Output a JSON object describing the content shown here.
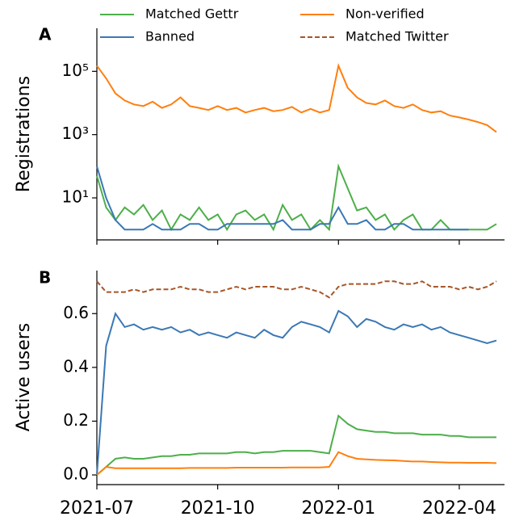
{
  "chart_data": [
    {
      "type": "line",
      "panel": "A",
      "ylabel": "Registrations",
      "log_y": true,
      "ylim": [
        0.47,
        2300000
      ],
      "yticks": [
        {
          "value": 10,
          "label": "10¹"
        },
        {
          "value": 1000,
          "label": "10³"
        },
        {
          "value": 100000,
          "label": "10⁵"
        }
      ],
      "series": [
        {
          "color": "#4daf4a",
          "values": [
            50,
            5,
            2,
            5,
            3,
            6,
            2,
            4,
            1,
            3,
            2,
            5,
            2,
            3,
            1,
            3,
            4,
            2,
            3,
            1,
            6,
            2,
            3,
            1,
            2,
            1,
            100,
            20,
            4,
            5,
            2,
            3,
            1,
            2,
            3,
            1,
            1,
            2,
            1,
            1,
            1,
            1,
            1,
            1.5
          ]
        },
        {
          "color": "#3a78b5",
          "values": [
            100,
            10,
            2,
            1,
            1,
            1,
            1.5,
            1,
            1,
            1,
            1.5,
            1.5,
            1,
            1,
            1.5,
            1.5,
            1.5,
            1.5,
            1.5,
            1.5,
            2,
            1,
            1,
            1,
            1.5,
            1.5,
            5,
            1.5,
            1.5,
            2,
            1,
            1,
            1.5,
            1.5,
            1,
            1,
            1,
            1,
            1,
            1,
            1,
            null,
            null,
            null
          ]
        },
        {
          "color": "#ff7f0e",
          "values": [
            150000,
            60000,
            20000,
            12000,
            9000,
            8000,
            11000,
            7000,
            9000,
            15000,
            8000,
            7000,
            6000,
            8000,
            6000,
            7000,
            5000,
            6000,
            7000,
            5500,
            6000,
            7500,
            5000,
            6500,
            5000,
            6000,
            150000,
            30000,
            15000,
            10000,
            9000,
            12000,
            8000,
            7000,
            9000,
            6000,
            5000,
            5500,
            4000,
            3500,
            3000,
            2500,
            2000,
            1200
          ]
        }
      ]
    },
    {
      "type": "line",
      "panel": "B",
      "ylabel": "Active users",
      "categories": [
        "2021-07",
        null,
        null,
        null,
        null,
        null,
        null,
        null,
        null,
        null,
        null,
        null,
        null,
        "2021-10",
        null,
        null,
        null,
        null,
        null,
        null,
        null,
        null,
        null,
        null,
        null,
        null,
        "2022-01",
        null,
        null,
        null,
        null,
        null,
        null,
        null,
        null,
        null,
        null,
        null,
        null,
        "2022-04",
        null,
        null,
        null,
        null
      ],
      "ylim": [
        -0.036,
        0.76
      ],
      "yticks": [
        {
          "value": 0,
          "label": "0.0"
        },
        0.2,
        0.4,
        0.6
      ],
      "series": [
        {
          "name": "Matched Gettr",
          "color": "#4daf4a",
          "dashed": false,
          "values": [
            0.0,
            0.03,
            0.06,
            0.065,
            0.06,
            0.06,
            0.065,
            0.07,
            0.07,
            0.075,
            0.075,
            0.08,
            0.08,
            0.08,
            0.08,
            0.085,
            0.085,
            0.08,
            0.085,
            0.085,
            0.09,
            0.09,
            0.09,
            0.09,
            0.085,
            0.08,
            0.22,
            0.19,
            0.17,
            0.165,
            0.16,
            0.16,
            0.155,
            0.155,
            0.155,
            0.15,
            0.15,
            0.15,
            0.145,
            0.145,
            0.14,
            0.14,
            0.14,
            0.14
          ]
        },
        {
          "name": "Banned",
          "color": "#3a78b5",
          "dashed": false,
          "values": [
            0.0,
            0.48,
            0.6,
            0.55,
            0.56,
            0.54,
            0.55,
            0.54,
            0.55,
            0.53,
            0.54,
            0.52,
            0.53,
            0.52,
            0.51,
            0.53,
            0.52,
            0.51,
            0.54,
            0.52,
            0.51,
            0.55,
            0.57,
            0.56,
            0.55,
            0.53,
            0.61,
            0.59,
            0.55,
            0.58,
            0.57,
            0.55,
            0.54,
            0.56,
            0.55,
            0.56,
            0.54,
            0.55,
            0.53,
            0.52,
            0.51,
            0.5,
            0.49,
            0.5
          ]
        },
        {
          "name": "Non-verified",
          "color": "#ff7f0e",
          "dashed": false,
          "values": [
            0.0,
            0.03,
            0.025,
            0.025,
            0.025,
            0.025,
            0.025,
            0.025,
            0.025,
            0.025,
            0.026,
            0.026,
            0.026,
            0.026,
            0.026,
            0.027,
            0.027,
            0.027,
            0.027,
            0.027,
            0.027,
            0.028,
            0.028,
            0.028,
            0.028,
            0.03,
            0.085,
            0.07,
            0.06,
            0.058,
            0.056,
            0.055,
            0.054,
            0.052,
            0.05,
            0.05,
            0.048,
            0.047,
            0.046,
            0.046,
            0.045,
            0.045,
            0.045,
            0.044
          ]
        },
        {
          "name": "Matched Twitter",
          "color": "#a65628",
          "dashed": true,
          "values": [
            0.72,
            0.68,
            0.68,
            0.68,
            0.69,
            0.68,
            0.69,
            0.69,
            0.69,
            0.7,
            0.69,
            0.69,
            0.68,
            0.68,
            0.69,
            0.7,
            0.69,
            0.7,
            0.7,
            0.7,
            0.69,
            0.69,
            0.7,
            0.69,
            0.68,
            0.66,
            0.7,
            0.71,
            0.71,
            0.71,
            0.71,
            0.72,
            0.72,
            0.71,
            0.71,
            0.72,
            0.7,
            0.7,
            0.7,
            0.69,
            0.7,
            0.69,
            0.7,
            0.72
          ]
        }
      ]
    }
  ]
}
